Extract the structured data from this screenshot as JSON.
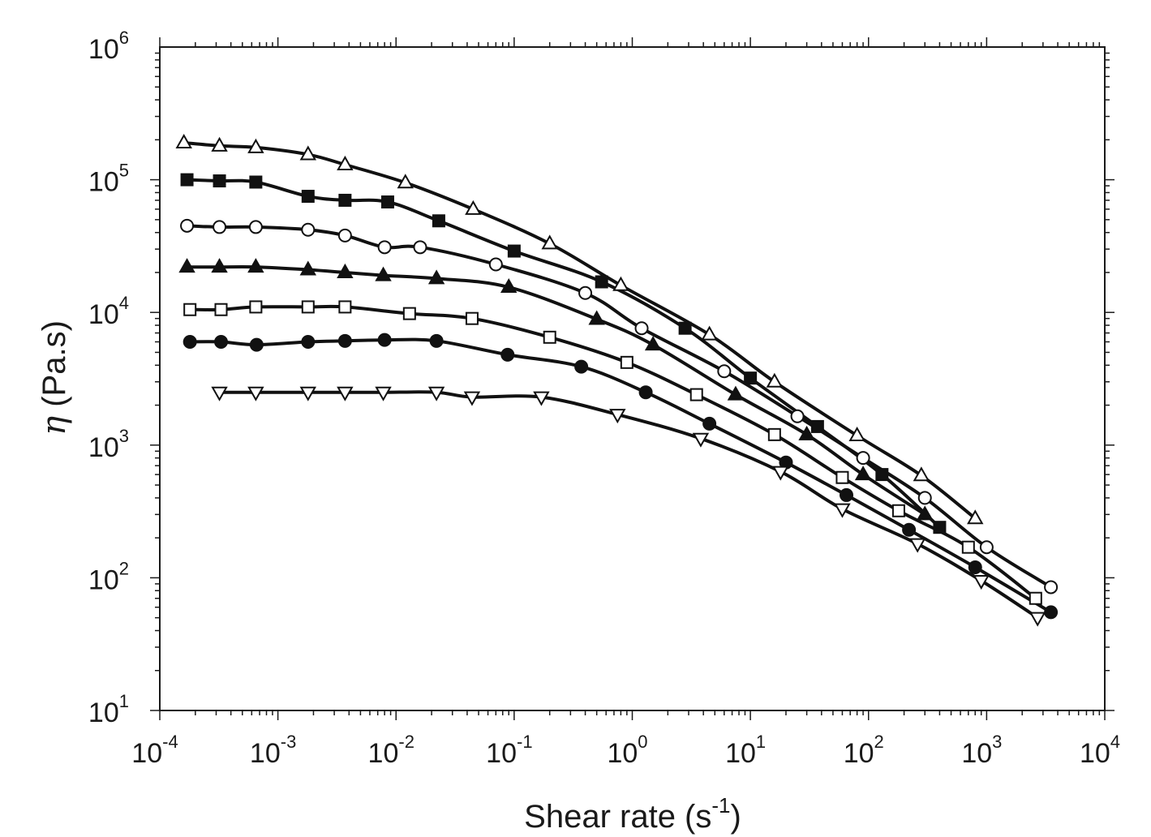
{
  "chart_data": {
    "type": "line",
    "title": "",
    "xscale": "log",
    "yscale": "log",
    "xlim": [
      0.0001,
      10000
    ],
    "ylim": [
      10,
      1000000
    ],
    "x_tick_labels": [
      {
        "base": "10",
        "exp": "-4"
      },
      {
        "base": "10",
        "exp": "-3"
      },
      {
        "base": "10",
        "exp": "-2"
      },
      {
        "base": "10",
        "exp": "-1"
      },
      {
        "base": "10",
        "exp": "0"
      },
      {
        "base": "10",
        "exp": "1"
      },
      {
        "base": "10",
        "exp": "2"
      },
      {
        "base": "10",
        "exp": "3"
      },
      {
        "base": "10",
        "exp": "4"
      }
    ],
    "y_tick_labels": [
      {
        "base": "10",
        "exp": "1"
      },
      {
        "base": "10",
        "exp": "2"
      },
      {
        "base": "10",
        "exp": "3"
      },
      {
        "base": "10",
        "exp": "4"
      },
      {
        "base": "10",
        "exp": "5"
      },
      {
        "base": "10",
        "exp": "6"
      }
    ],
    "xlabel": {
      "text": "Shear rate (s",
      "sup": "-1",
      "close": ")"
    },
    "ylabel": {
      "symbol": "η",
      "text": " (Pa.s)"
    },
    "series": [
      {
        "name": "open triangle up",
        "marker": "triangle-up",
        "filled": false,
        "x": [
          0.00016,
          0.00032,
          0.00065,
          0.0018,
          0.0037,
          0.012,
          0.045,
          0.2,
          0.8,
          4.5,
          16,
          80,
          280,
          800
        ],
        "y": [
          190000,
          180000,
          175000,
          155000,
          130000,
          95000,
          60000,
          33000,
          16000,
          6800,
          3000,
          1180,
          590,
          280
        ]
      },
      {
        "name": "filled square",
        "marker": "square",
        "filled": true,
        "x": [
          0.00017,
          0.00032,
          0.00065,
          0.0018,
          0.0037,
          0.0085,
          0.023,
          0.1,
          0.55,
          2.8,
          10,
          37,
          130,
          400
        ],
        "y": [
          100000,
          98000,
          96000,
          75000,
          70000,
          68000,
          49000,
          29000,
          17000,
          7600,
          3200,
          1380,
          600,
          240
        ]
      },
      {
        "name": "open circle",
        "marker": "circle",
        "filled": false,
        "x": [
          0.00017,
          0.00032,
          0.00065,
          0.0018,
          0.0037,
          0.008,
          0.016,
          0.07,
          0.4,
          1.2,
          6,
          25,
          90,
          300,
          1000,
          3500
        ],
        "y": [
          45000,
          44000,
          44000,
          42000,
          38000,
          31000,
          31000,
          23000,
          14000,
          7600,
          3600,
          1650,
          800,
          400,
          170,
          85
        ]
      },
      {
        "name": "filled triangle up",
        "marker": "triangle-up",
        "filled": true,
        "x": [
          0.00017,
          0.00032,
          0.00065,
          0.0018,
          0.0037,
          0.0078,
          0.022,
          0.09,
          0.5,
          1.5,
          7.5,
          30,
          90,
          300
        ],
        "y": [
          22000,
          22000,
          22000,
          21000,
          20000,
          19000,
          18000,
          15500,
          8900,
          5700,
          2400,
          1200,
          600,
          300
        ]
      },
      {
        "name": "open square",
        "marker": "square",
        "filled": false,
        "x": [
          0.00018,
          0.00033,
          0.00065,
          0.0018,
          0.0037,
          0.013,
          0.044,
          0.2,
          0.9,
          3.5,
          16,
          60,
          180,
          700,
          2600
        ],
        "y": [
          10500,
          10500,
          11000,
          11000,
          11000,
          9800,
          9000,
          6500,
          4200,
          2400,
          1200,
          570,
          320,
          170,
          70
        ]
      },
      {
        "name": "filled circle",
        "marker": "circle",
        "filled": true,
        "x": [
          0.00018,
          0.00033,
          0.00066,
          0.0018,
          0.0037,
          0.008,
          0.022,
          0.088,
          0.37,
          1.3,
          4.5,
          20,
          65,
          220,
          800,
          3500
        ],
        "y": [
          6000,
          6000,
          5700,
          6000,
          6100,
          6200,
          6100,
          4800,
          3900,
          2500,
          1450,
          740,
          420,
          230,
          120,
          55
        ]
      },
      {
        "name": "open triangle down",
        "marker": "triangle-down",
        "filled": false,
        "x": [
          0.00032,
          0.00065,
          0.0018,
          0.0037,
          0.0078,
          0.022,
          0.044,
          0.17,
          0.75,
          3.8,
          18,
          60,
          260,
          900,
          2700
        ],
        "y": [
          2500,
          2500,
          2500,
          2500,
          2500,
          2500,
          2300,
          2300,
          1700,
          1120,
          630,
          330,
          180,
          95,
          50
        ]
      }
    ]
  }
}
